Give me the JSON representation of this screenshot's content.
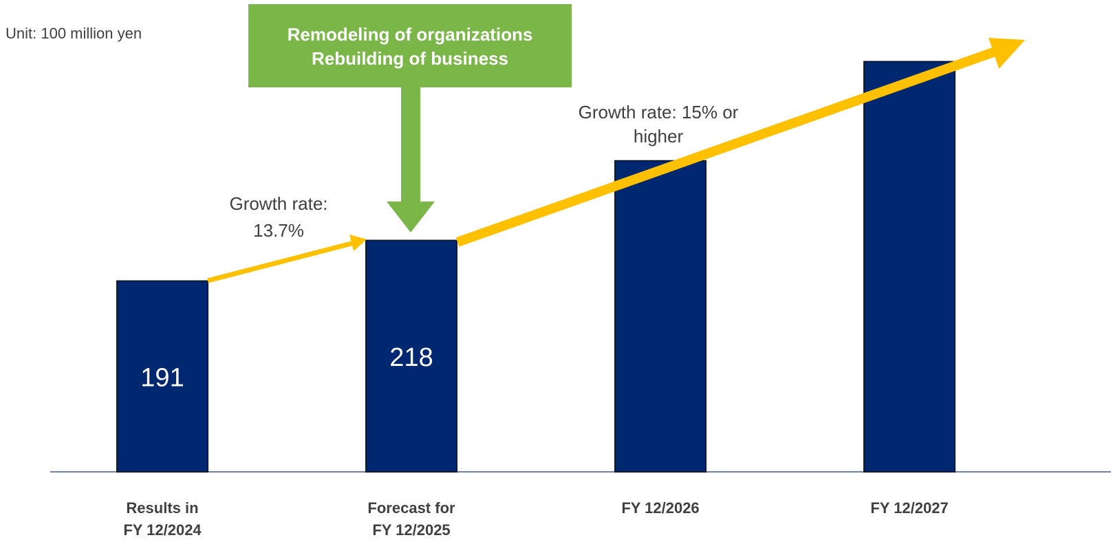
{
  "chart_data": {
    "type": "bar",
    "unit_label": "Unit: 100 million yen",
    "callout": [
      "Remodeling of organizations",
      "Rebuilding of business"
    ],
    "annotations": [
      [
        "Growth rate:",
        "13.7%"
      ],
      [
        "Growth rate: 15% or",
        "higher"
      ]
    ],
    "categories": [
      [
        "Results in",
        "FY 12/2024"
      ],
      [
        "Forecast for",
        "FY 12/2025"
      ],
      [
        "FY 12/2026"
      ],
      [
        "FY 12/2027"
      ]
    ],
    "values": [
      191,
      218,
      271,
      337
    ],
    "value_labels": [
      "191",
      "218",
      null,
      null
    ],
    "color": "#002870",
    "ylim": [
      64,
      378
    ]
  }
}
